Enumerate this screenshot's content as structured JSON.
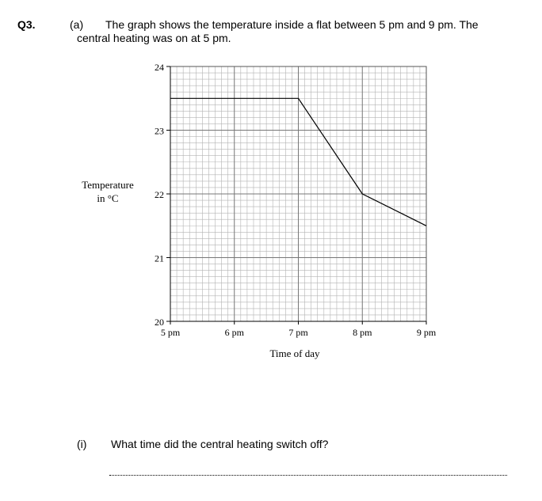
{
  "question": {
    "number": "Q3.",
    "part_a_label": "(a)",
    "intro_line1": "The graph shows the temperature inside a flat between 5 pm and 9 pm. The",
    "intro_line2": "central heating was on at 5 pm.",
    "part_i_label": "(i)",
    "part_i_text": "What time did the central heating switch off?"
  },
  "chart_data": {
    "type": "line",
    "xlabel": "Time of day",
    "ylabel_line1": "Temperature",
    "ylabel_line2": "in °C",
    "x_ticks": [
      "5 pm",
      "6 pm",
      "7 pm",
      "8 pm",
      "9 pm"
    ],
    "y_ticks": [
      "20",
      "21",
      "22",
      "23",
      "24"
    ],
    "xlim": [
      5,
      9
    ],
    "ylim": [
      20,
      24
    ],
    "grid": true,
    "series": [
      {
        "x": [
          5,
          7,
          8,
          9
        ],
        "y": [
          23.5,
          23.5,
          22,
          21.5
        ]
      }
    ]
  }
}
